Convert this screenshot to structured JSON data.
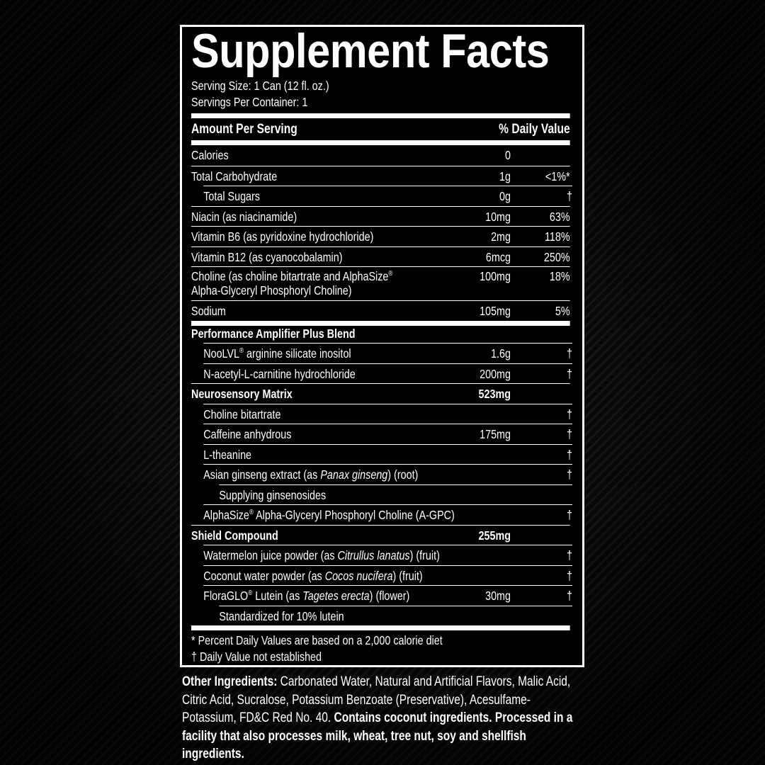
{
  "title": "Supplement Facts",
  "serving_size": "Serving Size: 1 Can (12 fl. oz.)",
  "servings_per_container": "Servings Per Container: 1",
  "header": {
    "amount": "Amount Per Serving",
    "daily_value": "% Daily Value"
  },
  "rows": [
    {
      "name": "Calories",
      "amount": "0",
      "dv": "",
      "indent": 0
    },
    {
      "name": "Total Carbohydrate",
      "amount": "1g",
      "dv": "<1%*",
      "indent": 0
    },
    {
      "name": "Total Sugars",
      "amount": "0g",
      "dv": "†",
      "indent": 1
    },
    {
      "name": "Niacin (as niacinamide)",
      "amount": "10mg",
      "dv": "63%",
      "indent": 0
    },
    {
      "name": "Vitamin B6 (as pyridoxine hydrochloride)",
      "amount": "2mg",
      "dv": "118%",
      "indent": 0
    },
    {
      "name": "Vitamin B12 (as cyanocobalamin)",
      "amount": "6mcg",
      "dv": "250%",
      "indent": 0
    },
    {
      "name": "Choline (as choline bitartrate and AlphaSize®",
      "name2": "Alpha-Glyceryl Phosphoryl Choline)",
      "amount": "100mg",
      "dv": "18%",
      "indent": 0
    },
    {
      "name": "Sodium",
      "amount": "105mg",
      "dv": "5%",
      "indent": 0
    },
    {
      "bar": true
    },
    {
      "name": "Performance Amplifier Plus Blend",
      "amount": "",
      "dv": "",
      "indent": 0,
      "bold": true,
      "section": true
    },
    {
      "name": "NooLVL® arginine silicate inositol",
      "amount": "1.6g",
      "dv": "†",
      "indent": 1
    },
    {
      "name": "N-acetyl-L-carnitine hydrochloride",
      "amount": "200mg",
      "dv": "†",
      "indent": 1
    },
    {
      "name": "Neurosensory Matrix",
      "amount": "523mg",
      "dv": "",
      "indent": 0,
      "bold": true
    },
    {
      "name": "Choline bitartrate",
      "amount": "",
      "dv": "†",
      "indent": 1
    },
    {
      "name": "Caffeine anhydrous",
      "amount": "175mg",
      "dv": "†",
      "indent": 1
    },
    {
      "name": "L-theanine",
      "amount": "",
      "dv": "†",
      "indent": 1
    },
    {
      "name": "Asian ginseng extract (as Panax ginseng) (root)",
      "italic": "Panax ginseng",
      "amount": "",
      "dv": "†",
      "indent": 1
    },
    {
      "name": "Supplying ginsenosides",
      "amount": "",
      "dv": "",
      "indent": 2
    },
    {
      "name": "AlphaSize® Alpha-Glyceryl Phosphoryl Choline (A-GPC)",
      "amount": "",
      "dv": "†",
      "indent": 1
    },
    {
      "name": "Shield Compound",
      "amount": "255mg",
      "dv": "",
      "indent": 0,
      "bold": true
    },
    {
      "name": "Watermelon juice powder (as Citrullus lanatus) (fruit)",
      "italic": "Citrullus lanatus",
      "amount": "",
      "dv": "†",
      "indent": 1
    },
    {
      "name": "Coconut water powder (as Cocos nucifera) (fruit)",
      "italic": "Cocos nucifera",
      "amount": "",
      "dv": "†",
      "indent": 1
    },
    {
      "name": "FloraGLO® Lutein (as Tagetes erecta) (flower)",
      "italic": "Tagetes erecta",
      "amount": "30mg",
      "dv": "†",
      "indent": 1
    },
    {
      "name": "Standardized for 10% lutein",
      "amount": "",
      "dv": "",
      "indent": 2
    }
  ],
  "footnotes": [
    "* Percent Daily Values are based on a 2,000 calorie diet",
    "† Daily Value not established"
  ],
  "other_ingredients": {
    "label": "Other Ingredients:",
    "text": " Carbonated Water, Natural and Artificial Flavors, Malic Acid, Citric Acid, Sucralose, Potassium Benzoate (Preservative), Acesulfame-Potassium, FD&C Red No. 40. ",
    "warning": "Contains coconut ingredients. Processed in a facility that also processes milk, wheat, tree nut, soy and shellfish ingredients."
  },
  "colors": {
    "label_bg": "#000000",
    "text": "#ffffff"
  }
}
